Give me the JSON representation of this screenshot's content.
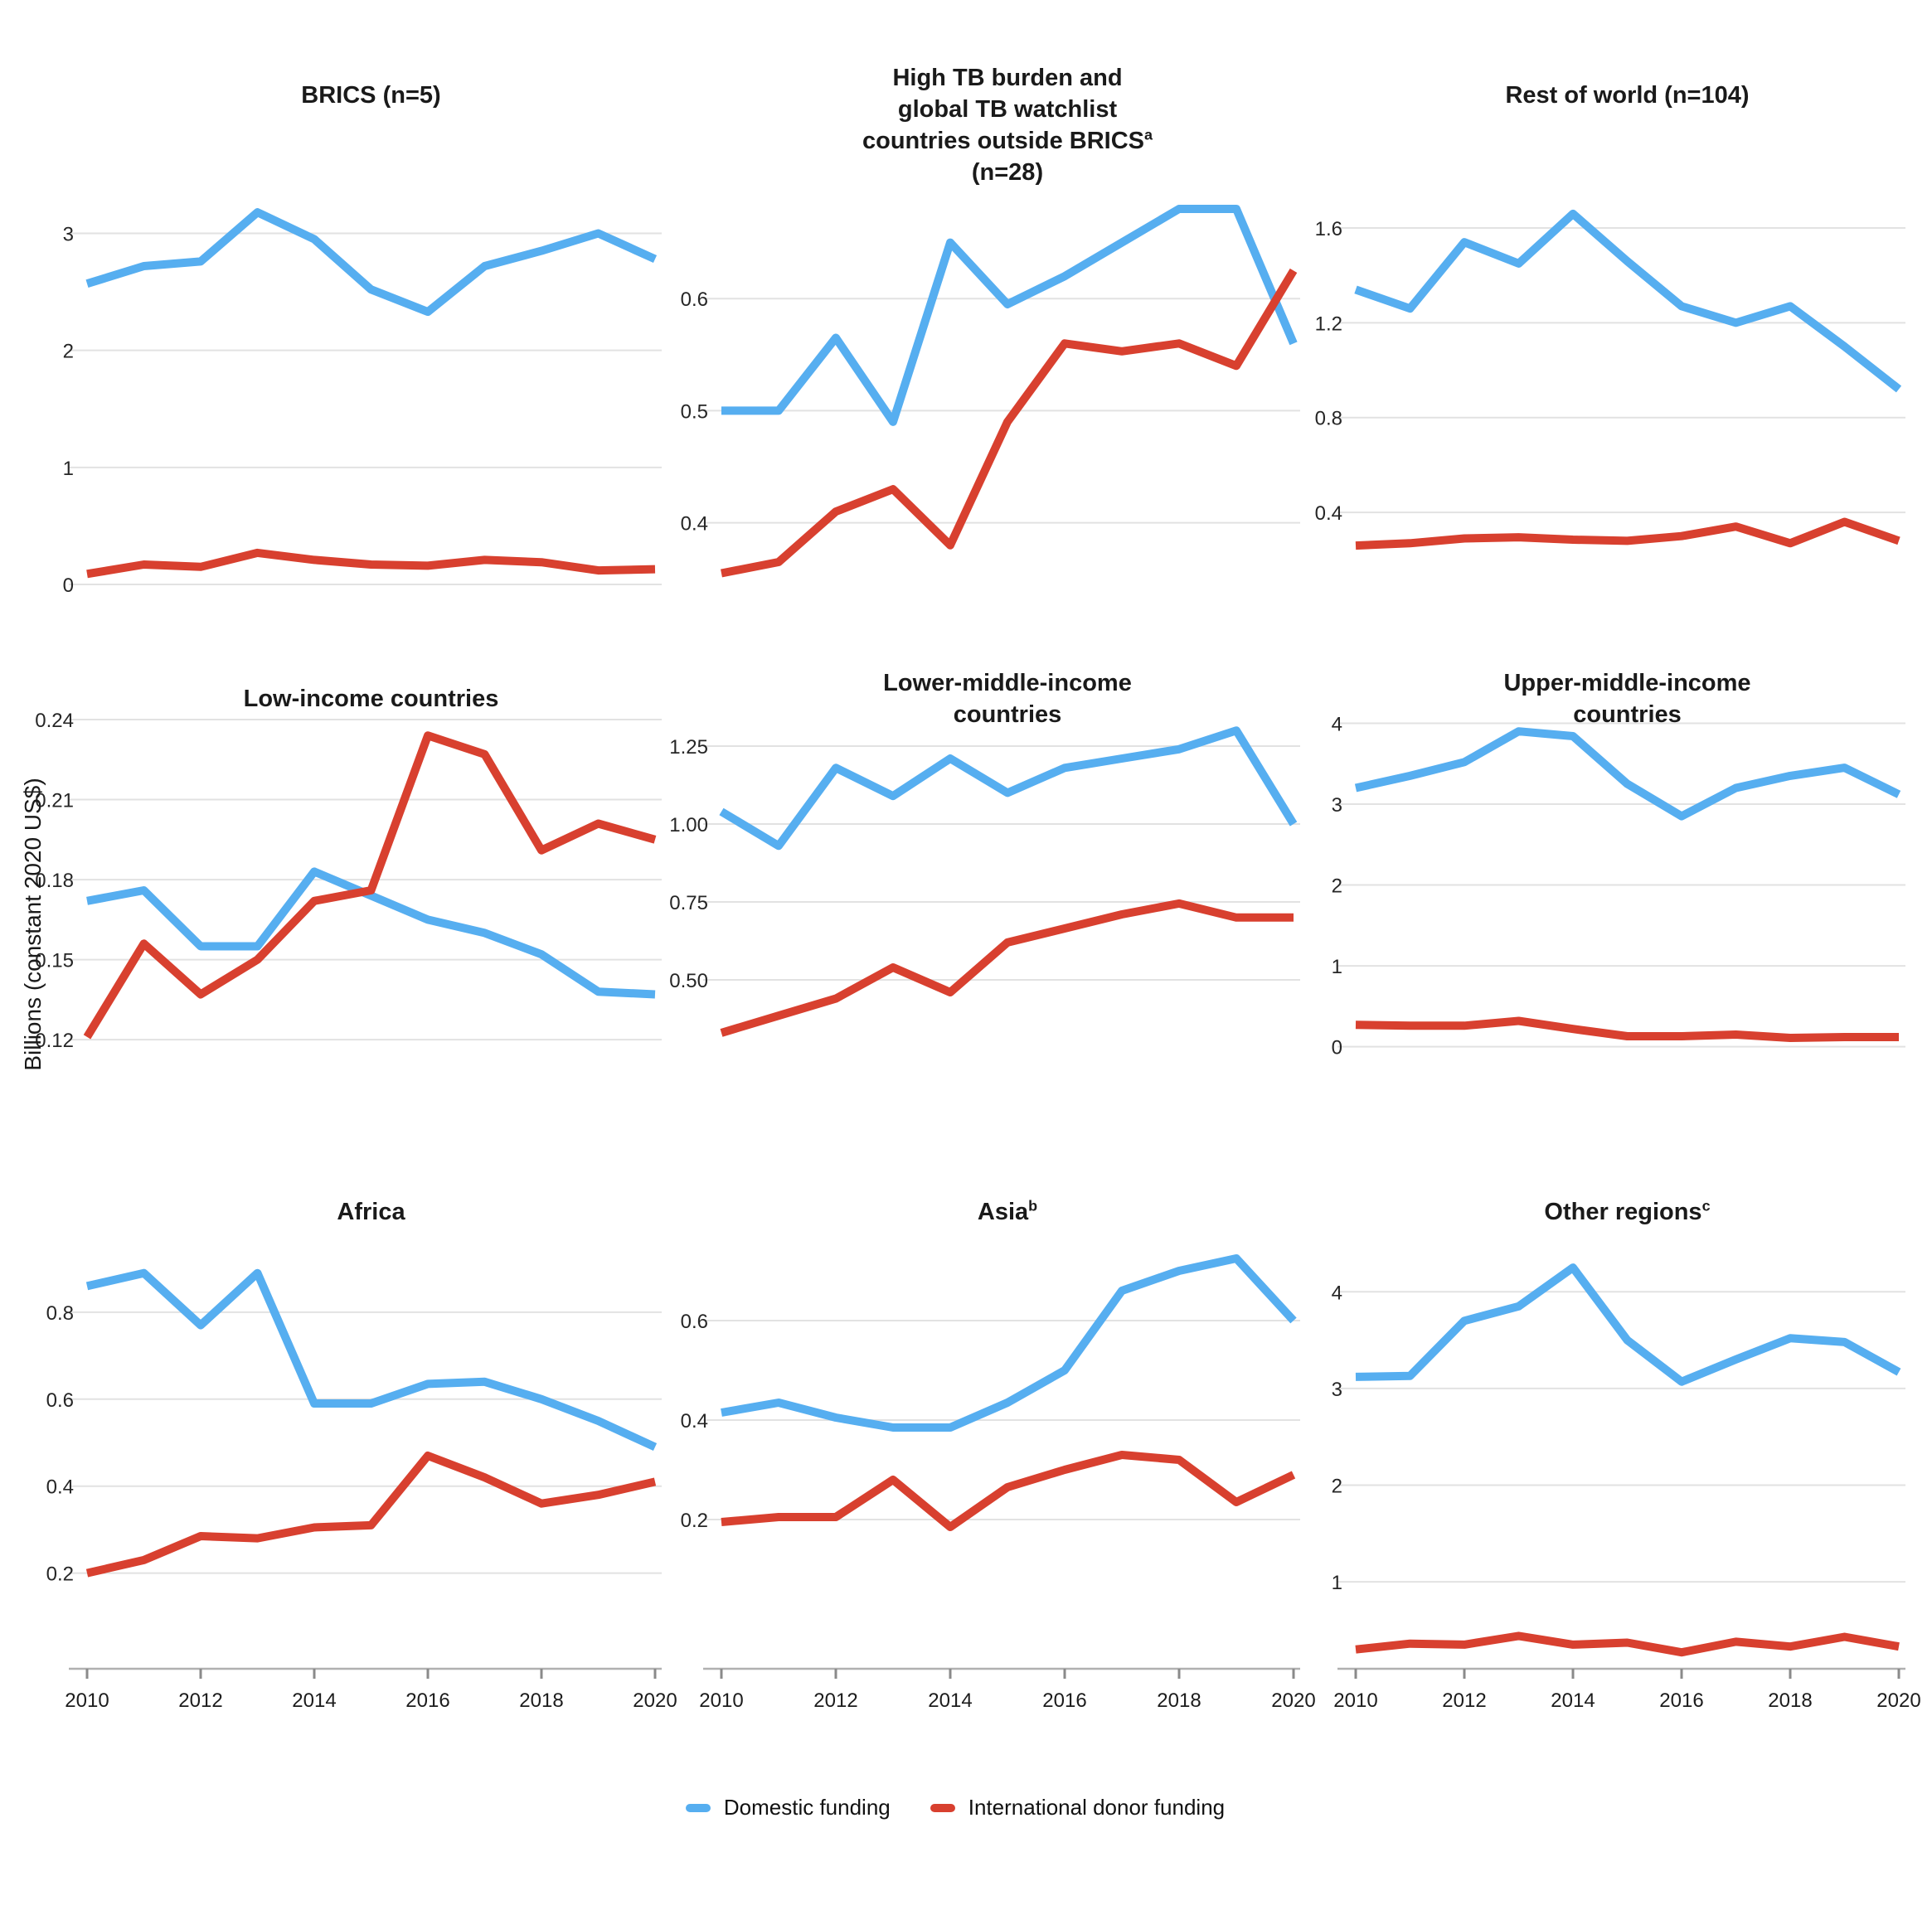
{
  "figure": {
    "ylabel": "Billions (constant 2020 US$)",
    "colors": {
      "domestic": "#56AEF0",
      "donor": "#D8402F",
      "grid": "#E2E2E2",
      "axis_line": "#B0B0B0",
      "tick_mark": "#8A8A8A",
      "text": "#1A1A1A"
    },
    "legend": [
      {
        "label": "Domestic funding",
        "color_key": "domestic"
      },
      {
        "label": "International donor funding",
        "color_key": "donor"
      }
    ],
    "xticks": [
      {
        "v": 2010,
        "label": "2010"
      },
      {
        "v": 2012,
        "label": "2012"
      },
      {
        "v": 2014,
        "label": "2014"
      },
      {
        "v": 2016,
        "label": "2016"
      },
      {
        "v": 2018,
        "label": "2018"
      },
      {
        "v": 2020,
        "label": "2020"
      }
    ]
  },
  "chart_data": [
    {
      "id": "brics",
      "type": "line",
      "title_lines": [
        {
          "text": "BRICS (n=5)"
        }
      ],
      "x": [
        2010,
        2011,
        2012,
        2013,
        2014,
        2015,
        2016,
        2017,
        2018,
        2019,
        2020
      ],
      "ylim": [
        0,
        3.4
      ],
      "yticks": [
        {
          "v": 0,
          "label": "0"
        },
        {
          "v": 1,
          "label": "1"
        },
        {
          "v": 2,
          "label": "2"
        },
        {
          "v": 3,
          "label": "3"
        }
      ],
      "grid": true,
      "show_xaxis": false,
      "legend_position": "none",
      "series": [
        {
          "name": "Domestic funding",
          "color_key": "domestic",
          "values": [
            2.57,
            2.72,
            2.76,
            3.18,
            2.95,
            2.52,
            2.33,
            2.72,
            2.85,
            3.0,
            2.78
          ]
        },
        {
          "name": "International donor funding",
          "color_key": "donor",
          "values": [
            0.09,
            0.17,
            0.15,
            0.27,
            0.21,
            0.17,
            0.16,
            0.21,
            0.19,
            0.12,
            0.13
          ]
        }
      ]
    },
    {
      "id": "high-tb-watchlist",
      "type": "line",
      "title_lines": [
        {
          "text": "High TB burden and"
        },
        {
          "text": "global TB watchlist"
        },
        {
          "text": "countries outside BRICS",
          "sup": "a"
        },
        {
          "text": "(n=28)"
        }
      ],
      "x": [
        2010,
        2011,
        2012,
        2013,
        2014,
        2015,
        2016,
        2017,
        2018,
        2019,
        2020
      ],
      "ylim": [
        0.345,
        0.7
      ],
      "yticks": [
        {
          "v": 0.4,
          "label": "0.4"
        },
        {
          "v": 0.5,
          "label": "0.5"
        },
        {
          "v": 0.6,
          "label": "0.6"
        }
      ],
      "grid": true,
      "show_xaxis": false,
      "legend_position": "none",
      "series": [
        {
          "name": "Domestic funding",
          "color_key": "domestic",
          "values": [
            0.5,
            0.5,
            0.565,
            0.49,
            0.65,
            0.595,
            0.62,
            0.65,
            0.68,
            0.68,
            0.56
          ]
        },
        {
          "name": "International donor funding",
          "color_key": "donor",
          "values": [
            0.355,
            0.365,
            0.41,
            0.43,
            0.38,
            0.49,
            0.56,
            0.553,
            0.56,
            0.54,
            0.625
          ]
        }
      ]
    },
    {
      "id": "rest-of-world",
      "type": "line",
      "title_lines": [
        {
          "text": "Rest of world (n=104)"
        }
      ],
      "x": [
        2010,
        2011,
        2012,
        2013,
        2014,
        2015,
        2016,
        2017,
        2018,
        2019,
        2020
      ],
      "ylim": [
        0.096,
        1.775
      ],
      "yticks": [
        {
          "v": 0.4,
          "label": "0.4"
        },
        {
          "v": 0.8,
          "label": "0.8"
        },
        {
          "v": 1.2,
          "label": "1.2"
        },
        {
          "v": 1.6,
          "label": "1.6"
        }
      ],
      "grid": true,
      "show_xaxis": false,
      "legend_position": "none",
      "series": [
        {
          "name": "Domestic funding",
          "color_key": "domestic",
          "values": [
            1.34,
            1.26,
            1.54,
            1.45,
            1.66,
            1.46,
            1.27,
            1.2,
            1.27,
            1.1,
            0.92
          ]
        },
        {
          "name": "International donor funding",
          "color_key": "donor",
          "values": [
            0.26,
            0.27,
            0.29,
            0.295,
            0.285,
            0.28,
            0.3,
            0.34,
            0.27,
            0.36,
            0.28
          ]
        }
      ]
    },
    {
      "id": "low-income",
      "type": "line",
      "title_lines": [
        {
          "text": "Low-income countries"
        }
      ],
      "x": [
        2010,
        2011,
        2012,
        2013,
        2014,
        2015,
        2016,
        2017,
        2018,
        2019,
        2020
      ],
      "ylim": [
        0.084,
        0.2456
      ],
      "yticks": [
        {
          "v": 0.12,
          "label": "0.12"
        },
        {
          "v": 0.15,
          "label": "0.15"
        },
        {
          "v": 0.18,
          "label": "0.18"
        },
        {
          "v": 0.21,
          "label": "0.21"
        },
        {
          "v": 0.24,
          "label": "0.24"
        }
      ],
      "grid": true,
      "show_xaxis": false,
      "legend_position": "none",
      "series": [
        {
          "name": "Domestic funding",
          "color_key": "domestic",
          "values": [
            0.172,
            0.176,
            0.155,
            0.155,
            0.183,
            0.174,
            0.165,
            0.16,
            0.152,
            0.138,
            0.137
          ]
        },
        {
          "name": "International donor funding",
          "color_key": "donor",
          "values": [
            0.121,
            0.156,
            0.137,
            0.15,
            0.172,
            0.176,
            0.234,
            0.227,
            0.191,
            0.201,
            0.195
          ]
        }
      ]
    },
    {
      "id": "lower-middle-income",
      "type": "line",
      "title_lines": [
        {
          "text": "Lower-middle-income"
        },
        {
          "text": "countries"
        }
      ],
      "x": [
        2010,
        2011,
        2012,
        2013,
        2014,
        2015,
        2016,
        2017,
        2018,
        2019,
        2020
      ],
      "ylim": [
        0,
        1.383
      ],
      "yticks": [
        {
          "v": 0.5,
          "label": "0.50"
        },
        {
          "v": 0.75,
          "label": "0.75"
        },
        {
          "v": 1.0,
          "label": "1.00"
        },
        {
          "v": 1.25,
          "label": "1.25"
        }
      ],
      "grid": true,
      "show_xaxis": false,
      "legend_position": "none",
      "series": [
        {
          "name": "Domestic funding",
          "color_key": "domestic",
          "values": [
            1.04,
            0.93,
            1.18,
            1.09,
            1.21,
            1.1,
            1.18,
            1.21,
            1.24,
            1.3,
            1.0
          ]
        },
        {
          "name": "International donor funding",
          "color_key": "donor",
          "values": [
            0.33,
            0.385,
            0.44,
            0.54,
            0.46,
            0.62,
            0.665,
            0.71,
            0.745,
            0.7,
            0.7
          ]
        }
      ]
    },
    {
      "id": "upper-middle-income",
      "type": "line",
      "title_lines": [
        {
          "text": "Upper-middle-income"
        },
        {
          "text": "countries"
        }
      ],
      "x": [
        2010,
        2011,
        2012,
        2013,
        2014,
        2015,
        2016,
        2017,
        2018,
        2019,
        2020
      ],
      "ylim": [
        -1.1,
        4.23
      ],
      "yticks": [
        {
          "v": 0,
          "label": "0"
        },
        {
          "v": 1,
          "label": "1"
        },
        {
          "v": 2,
          "label": "2"
        },
        {
          "v": 3,
          "label": "3"
        },
        {
          "v": 4,
          "label": "4"
        }
      ],
      "grid": true,
      "show_xaxis": false,
      "legend_position": "none",
      "series": [
        {
          "name": "Domestic funding",
          "color_key": "domestic",
          "values": [
            3.2,
            3.35,
            3.52,
            3.9,
            3.84,
            3.25,
            2.85,
            3.2,
            3.35,
            3.45,
            3.12
          ]
        },
        {
          "name": "International donor funding",
          "color_key": "donor",
          "values": [
            0.27,
            0.26,
            0.26,
            0.32,
            0.22,
            0.13,
            0.13,
            0.15,
            0.11,
            0.12,
            0.12
          ]
        }
      ]
    },
    {
      "id": "africa",
      "type": "line",
      "title_lines": [
        {
          "text": "Africa"
        }
      ],
      "x": [
        2010,
        2011,
        2012,
        2013,
        2014,
        2015,
        2016,
        2017,
        2018,
        2019,
        2020
      ],
      "ylim": [
        -0.02,
        0.958
      ],
      "yticks": [
        {
          "v": 0.2,
          "label": "0.2"
        },
        {
          "v": 0.4,
          "label": "0.4"
        },
        {
          "v": 0.6,
          "label": "0.6"
        },
        {
          "v": 0.8,
          "label": "0.8"
        }
      ],
      "grid": true,
      "show_xaxis": true,
      "legend_position": "none",
      "series": [
        {
          "name": "Domestic funding",
          "color_key": "domestic",
          "values": [
            0.86,
            0.89,
            0.77,
            0.89,
            0.59,
            0.59,
            0.635,
            0.64,
            0.6,
            0.55,
            0.49
          ]
        },
        {
          "name": "International donor funding",
          "color_key": "donor",
          "values": [
            0.2,
            0.23,
            0.285,
            0.28,
            0.305,
            0.31,
            0.47,
            0.42,
            0.36,
            0.38,
            0.41
          ]
        }
      ]
    },
    {
      "id": "asia",
      "type": "line",
      "title_lines": [
        {
          "text": "Asia",
          "sup": "b"
        }
      ],
      "x": [
        2010,
        2011,
        2012,
        2013,
        2014,
        2015,
        2016,
        2017,
        2018,
        2019,
        2020
      ],
      "ylim": [
        -0.1,
        0.755
      ],
      "yticks": [
        {
          "v": 0.2,
          "label": "0.2"
        },
        {
          "v": 0.4,
          "label": "0.4"
        },
        {
          "v": 0.6,
          "label": "0.6"
        }
      ],
      "grid": true,
      "show_xaxis": true,
      "legend_position": "none",
      "series": [
        {
          "name": "Domestic funding",
          "color_key": "domestic",
          "values": [
            0.415,
            0.435,
            0.405,
            0.385,
            0.385,
            0.435,
            0.5,
            0.66,
            0.7,
            0.725,
            0.6
          ]
        },
        {
          "name": "International donor funding",
          "color_key": "donor",
          "values": [
            0.195,
            0.205,
            0.205,
            0.28,
            0.185,
            0.265,
            0.3,
            0.33,
            0.32,
            0.235,
            0.29
          ]
        }
      ]
    },
    {
      "id": "other-regions",
      "type": "line",
      "title_lines": [
        {
          "text": "Other regions",
          "sup": "c"
        }
      ],
      "x": [
        2010,
        2011,
        2012,
        2013,
        2014,
        2015,
        2016,
        2017,
        2018,
        2019,
        2020
      ],
      "ylim": [
        0.1,
        4.5
      ],
      "yticks": [
        {
          "v": 1,
          "label": "1"
        },
        {
          "v": 2,
          "label": "2"
        },
        {
          "v": 3,
          "label": "3"
        },
        {
          "v": 4,
          "label": "4"
        }
      ],
      "grid": true,
      "show_xaxis": true,
      "legend_position": "none",
      "series": [
        {
          "name": "Domestic funding",
          "color_key": "domestic",
          "values": [
            3.12,
            3.13,
            3.7,
            3.85,
            4.25,
            3.5,
            3.07,
            3.3,
            3.52,
            3.48,
            3.17
          ]
        },
        {
          "name": "International donor funding",
          "color_key": "donor",
          "values": [
            0.3,
            0.36,
            0.35,
            0.44,
            0.35,
            0.37,
            0.27,
            0.38,
            0.33,
            0.43,
            0.33
          ]
        }
      ]
    }
  ]
}
